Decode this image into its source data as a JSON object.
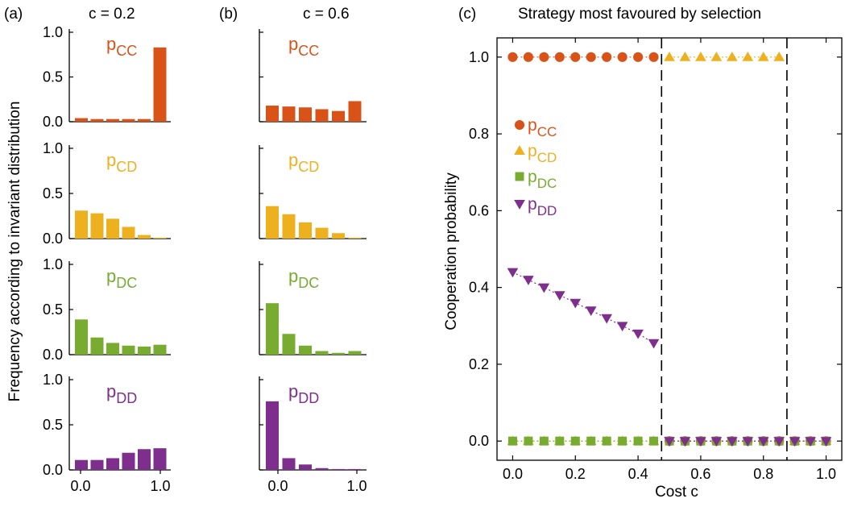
{
  "panel_a": {
    "tag": "(a)",
    "title": "c = 0.2"
  },
  "panel_b": {
    "tag": "(b)",
    "title": "c = 0.6"
  },
  "panel_c": {
    "tag": "(c)",
    "title": "Strategy most favoured by selection"
  },
  "shared_ylabel": "Frequency according to invariant distribution",
  "colors": {
    "pCC": "#d95319",
    "pCD": "#edb120",
    "pDC": "#77ac30",
    "pDD": "#7e2f8e",
    "axis": "#000000"
  },
  "chart_data": [
    {
      "type": "bar",
      "panel": "a",
      "ylim": [
        0,
        1
      ],
      "yticks": [
        "0.0",
        "0.5",
        "1.0"
      ],
      "xticks": [
        "0.0",
        "1.0"
      ],
      "bins": 6,
      "series": [
        {
          "name": "p",
          "sub": "CC",
          "color_key": "pCC",
          "values": [
            0.04,
            0.03,
            0.03,
            0.03,
            0.03,
            0.83
          ]
        },
        {
          "name": "p",
          "sub": "CD",
          "color_key": "pCD",
          "values": [
            0.31,
            0.28,
            0.22,
            0.13,
            0.04,
            0.01
          ]
        },
        {
          "name": "p",
          "sub": "DC",
          "color_key": "pDC",
          "values": [
            0.39,
            0.19,
            0.13,
            0.1,
            0.09,
            0.11
          ]
        },
        {
          "name": "p",
          "sub": "DD",
          "color_key": "pDD",
          "values": [
            0.11,
            0.11,
            0.13,
            0.19,
            0.23,
            0.24
          ]
        }
      ]
    },
    {
      "type": "bar",
      "panel": "b",
      "ylim": [
        0,
        1
      ],
      "xticks": [
        "0.0",
        "1.0"
      ],
      "bins": 6,
      "series": [
        {
          "name": "p",
          "sub": "CC",
          "color_key": "pCC",
          "values": [
            0.18,
            0.17,
            0.16,
            0.14,
            0.12,
            0.23
          ]
        },
        {
          "name": "p",
          "sub": "CD",
          "color_key": "pCD",
          "values": [
            0.36,
            0.27,
            0.18,
            0.12,
            0.06,
            0.01
          ]
        },
        {
          "name": "p",
          "sub": "DC",
          "color_key": "pDC",
          "values": [
            0.57,
            0.23,
            0.1,
            0.04,
            0.02,
            0.04
          ]
        },
        {
          "name": "p",
          "sub": "DD",
          "color_key": "pDD",
          "values": [
            0.76,
            0.13,
            0.06,
            0.02,
            0.01,
            0.01
          ]
        }
      ]
    },
    {
      "type": "scatter",
      "panel": "c",
      "xlabel": "Cost c",
      "ylabel": "Cooperation probability",
      "xlim": [
        -0.05,
        1.05
      ],
      "ylim": [
        -0.05,
        1.05
      ],
      "xticks": [
        "0.0",
        "0.2",
        "0.4",
        "0.6",
        "0.8",
        "1.0"
      ],
      "yticks": [
        "0.0",
        "0.2",
        "0.4",
        "0.6",
        "0.8",
        "1.0"
      ],
      "vlines": [
        0.475,
        0.875
      ],
      "x": [
        0,
        0.05,
        0.1,
        0.15,
        0.2,
        0.25,
        0.3,
        0.35,
        0.4,
        0.45,
        0.5,
        0.55,
        0.6,
        0.65,
        0.7,
        0.75,
        0.8,
        0.85,
        0.9,
        0.95,
        1.0
      ],
      "legend_position": "left-center",
      "series": [
        {
          "name": "p",
          "sub": "CC",
          "color_key": "pCC",
          "marker": "circle",
          "y": [
            1,
            1,
            1,
            1,
            1,
            1,
            1,
            1,
            1,
            1,
            0,
            0,
            0,
            0,
            0,
            0,
            0,
            0,
            0,
            0,
            0
          ]
        },
        {
          "name": "p",
          "sub": "CD",
          "color_key": "pCD",
          "marker": "triangle-up",
          "y": [
            0,
            0,
            0,
            0,
            0,
            0,
            0,
            0,
            0,
            0,
            1,
            1,
            1,
            1,
            1,
            1,
            1,
            1,
            0,
            0,
            0
          ]
        },
        {
          "name": "p",
          "sub": "DC",
          "color_key": "pDC",
          "marker": "square",
          "y": [
            0,
            0,
            0,
            0,
            0,
            0,
            0,
            0,
            0,
            0,
            0,
            0,
            0,
            0,
            0,
            0,
            0,
            0,
            0,
            0,
            0
          ]
        },
        {
          "name": "p",
          "sub": "DD",
          "color_key": "pDD",
          "marker": "triangle-down",
          "y": [
            0.44,
            0.42,
            0.4,
            0.38,
            0.36,
            0.34,
            0.32,
            0.3,
            0.28,
            0.255,
            0,
            0,
            0,
            0,
            0,
            0,
            0,
            0,
            0,
            0,
            0
          ]
        }
      ]
    }
  ]
}
